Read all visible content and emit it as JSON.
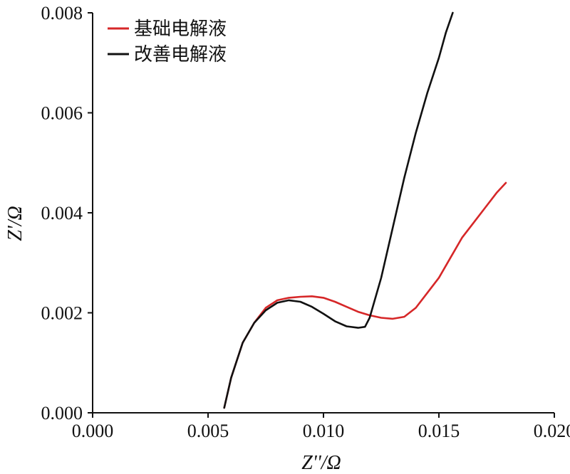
{
  "chart_data": {
    "type": "line",
    "xlabel": "Z''/Ω",
    "ylabel": "Z'/Ω",
    "xlim": [
      0,
      0.02
    ],
    "ylim": [
      0,
      0.008
    ],
    "xticks": [
      "0.000",
      "0.005",
      "0.010",
      "0.015",
      "0.020"
    ],
    "yticks": [
      "0.000",
      "0.002",
      "0.004",
      "0.006",
      "0.008"
    ],
    "grid": false,
    "legend_position": "top-left",
    "series": [
      {
        "name": "基础电解液",
        "color": "#d62728",
        "points": [
          [
            0.0057,
            0.0001
          ],
          [
            0.006,
            0.0007
          ],
          [
            0.0065,
            0.0014
          ],
          [
            0.007,
            0.0018
          ],
          [
            0.0075,
            0.0021
          ],
          [
            0.008,
            0.00225
          ],
          [
            0.0085,
            0.0023
          ],
          [
            0.009,
            0.00232
          ],
          [
            0.0095,
            0.00233
          ],
          [
            0.01,
            0.0023
          ],
          [
            0.0105,
            0.00222
          ],
          [
            0.011,
            0.00212
          ],
          [
            0.0115,
            0.00202
          ],
          [
            0.012,
            0.00195
          ],
          [
            0.0125,
            0.0019
          ],
          [
            0.013,
            0.00188
          ],
          [
            0.0135,
            0.00192
          ],
          [
            0.014,
            0.0021
          ],
          [
            0.0145,
            0.0024
          ],
          [
            0.015,
            0.0027
          ],
          [
            0.0155,
            0.0031
          ],
          [
            0.016,
            0.0035
          ],
          [
            0.0165,
            0.0038
          ],
          [
            0.017,
            0.0041
          ],
          [
            0.0175,
            0.0044
          ],
          [
            0.0179,
            0.0046
          ]
        ]
      },
      {
        "name": "改善电解液",
        "color": "#111111",
        "points": [
          [
            0.0057,
            0.0001
          ],
          [
            0.006,
            0.0007
          ],
          [
            0.0065,
            0.0014
          ],
          [
            0.007,
            0.0018
          ],
          [
            0.0075,
            0.00205
          ],
          [
            0.008,
            0.0022
          ],
          [
            0.0085,
            0.00225
          ],
          [
            0.009,
            0.00222
          ],
          [
            0.0095,
            0.00212
          ],
          [
            0.01,
            0.00198
          ],
          [
            0.0105,
            0.00183
          ],
          [
            0.011,
            0.00173
          ],
          [
            0.0115,
            0.0017
          ],
          [
            0.0118,
            0.00172
          ],
          [
            0.012,
            0.0019
          ],
          [
            0.0125,
            0.0027
          ],
          [
            0.013,
            0.0037
          ],
          [
            0.0135,
            0.0047
          ],
          [
            0.014,
            0.0056
          ],
          [
            0.0145,
            0.0064
          ],
          [
            0.015,
            0.0071
          ],
          [
            0.0153,
            0.0076
          ],
          [
            0.0156,
            0.008
          ]
        ]
      }
    ]
  }
}
